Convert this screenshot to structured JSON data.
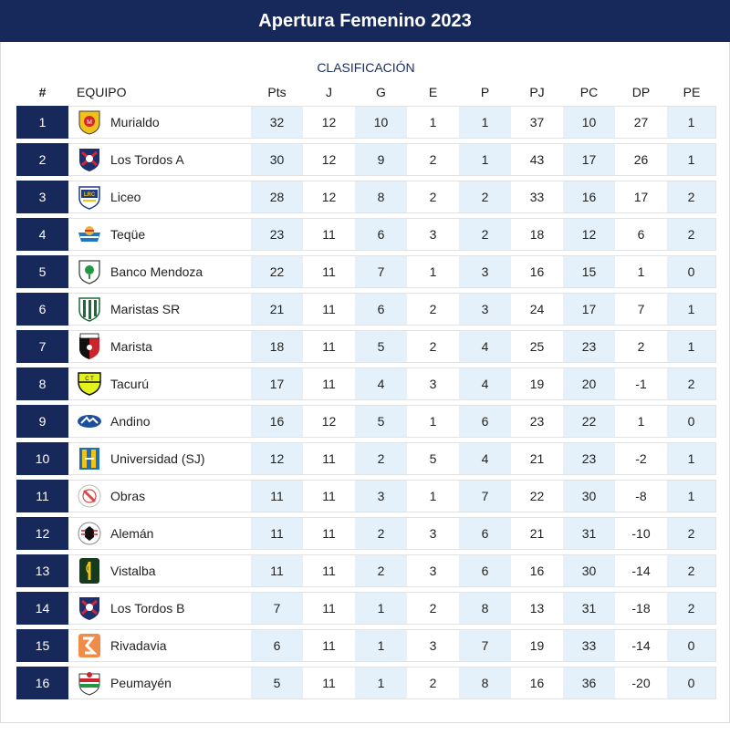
{
  "title": "Apertura Femenino 2023",
  "caption": "CLASIFICACIÓN",
  "columns": {
    "pos": "#",
    "team": "EQUIPO",
    "pts": "Pts",
    "j": "J",
    "g": "G",
    "e": "E",
    "p": "P",
    "pj": "PJ",
    "pc": "PC",
    "dp": "DP",
    "pe": "PE"
  },
  "colors": {
    "navy": "#17295a",
    "shade": "#e5f1fa"
  },
  "rows": [
    {
      "pos": "1",
      "team": "Murialdo",
      "crest": "murialdo-crest-icon",
      "pts": "32",
      "j": "12",
      "g": "10",
      "e": "1",
      "p": "1",
      "pj": "37",
      "pc": "10",
      "dp": "27",
      "pe": "1"
    },
    {
      "pos": "2",
      "team": "Los Tordos A",
      "crest": "los-tordos-crest-icon",
      "pts": "30",
      "j": "12",
      "g": "9",
      "e": "2",
      "p": "1",
      "pj": "43",
      "pc": "17",
      "dp": "26",
      "pe": "1"
    },
    {
      "pos": "3",
      "team": "Liceo",
      "crest": "liceo-crest-icon",
      "pts": "28",
      "j": "12",
      "g": "8",
      "e": "2",
      "p": "2",
      "pj": "33",
      "pc": "16",
      "dp": "17",
      "pe": "2"
    },
    {
      "pos": "4",
      "team": "Teqüe",
      "crest": "teque-crest-icon",
      "pts": "23",
      "j": "11",
      "g": "6",
      "e": "3",
      "p": "2",
      "pj": "18",
      "pc": "12",
      "dp": "6",
      "pe": "2"
    },
    {
      "pos": "5",
      "team": "Banco Mendoza",
      "crest": "banco-mendoza-crest-icon",
      "pts": "22",
      "j": "11",
      "g": "7",
      "e": "1",
      "p": "3",
      "pj": "16",
      "pc": "15",
      "dp": "1",
      "pe": "0"
    },
    {
      "pos": "6",
      "team": "Maristas SR",
      "crest": "maristas-sr-crest-icon",
      "pts": "21",
      "j": "11",
      "g": "6",
      "e": "2",
      "p": "3",
      "pj": "24",
      "pc": "17",
      "dp": "7",
      "pe": "1"
    },
    {
      "pos": "7",
      "team": "Marista",
      "crest": "marista-crest-icon",
      "pts": "18",
      "j": "11",
      "g": "5",
      "e": "2",
      "p": "4",
      "pj": "25",
      "pc": "23",
      "dp": "2",
      "pe": "1"
    },
    {
      "pos": "8",
      "team": "Tacurú",
      "crest": "tacuru-crest-icon",
      "pts": "17",
      "j": "11",
      "g": "4",
      "e": "3",
      "p": "4",
      "pj": "19",
      "pc": "20",
      "dp": "-1",
      "pe": "2"
    },
    {
      "pos": "9",
      "team": "Andino",
      "crest": "andino-crest-icon",
      "pts": "16",
      "j": "12",
      "g": "5",
      "e": "1",
      "p": "6",
      "pj": "23",
      "pc": "22",
      "dp": "1",
      "pe": "0"
    },
    {
      "pos": "10",
      "team": "Universidad (SJ)",
      "crest": "universidad-sj-crest-icon",
      "pts": "12",
      "j": "11",
      "g": "2",
      "e": "5",
      "p": "4",
      "pj": "21",
      "pc": "23",
      "dp": "-2",
      "pe": "1"
    },
    {
      "pos": "11",
      "team": "Obras",
      "crest": "obras-crest-icon",
      "pts": "11",
      "j": "11",
      "g": "3",
      "e": "1",
      "p": "7",
      "pj": "22",
      "pc": "30",
      "dp": "-8",
      "pe": "1"
    },
    {
      "pos": "12",
      "team": "Alemán",
      "crest": "aleman-crest-icon",
      "pts": "11",
      "j": "11",
      "g": "2",
      "e": "3",
      "p": "6",
      "pj": "21",
      "pc": "31",
      "dp": "-10",
      "pe": "2"
    },
    {
      "pos": "13",
      "team": "Vistalba",
      "crest": "vistalba-crest-icon",
      "pts": "11",
      "j": "11",
      "g": "2",
      "e": "3",
      "p": "6",
      "pj": "16",
      "pc": "30",
      "dp": "-14",
      "pe": "2"
    },
    {
      "pos": "14",
      "team": "Los Tordos B",
      "crest": "los-tordos-crest-icon",
      "pts": "7",
      "j": "11",
      "g": "1",
      "e": "2",
      "p": "8",
      "pj": "13",
      "pc": "31",
      "dp": "-18",
      "pe": "2"
    },
    {
      "pos": "15",
      "team": "Rivadavia",
      "crest": "rivadavia-crest-icon",
      "pts": "6",
      "j": "11",
      "g": "1",
      "e": "3",
      "p": "7",
      "pj": "19",
      "pc": "33",
      "dp": "-14",
      "pe": "0"
    },
    {
      "pos": "16",
      "team": "Peumayén",
      "crest": "peumayen-crest-icon",
      "pts": "5",
      "j": "11",
      "g": "1",
      "e": "2",
      "p": "8",
      "pj": "16",
      "pc": "36",
      "dp": "-20",
      "pe": "0"
    }
  ]
}
